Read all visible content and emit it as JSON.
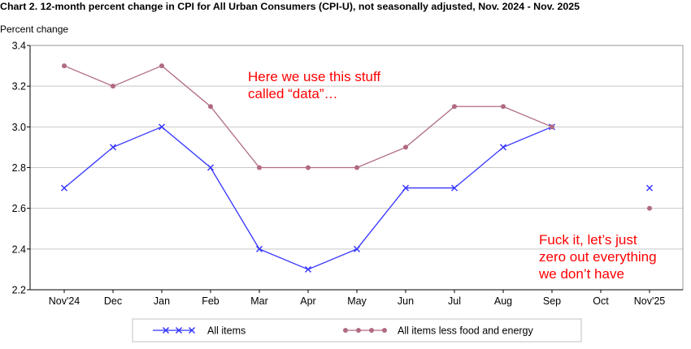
{
  "chart_data": {
    "type": "line",
    "title": "Chart 2. 12-month percent change in CPI for All Urban Consumers (CPI-U), not seasonally adjusted, Nov. 2024 - Nov. 2025",
    "ylabel": "Percent change",
    "xlabel": "",
    "categories": [
      "Nov'24",
      "Dec",
      "Jan",
      "Feb",
      "Mar",
      "Apr",
      "May",
      "Jun",
      "Jul",
      "Aug",
      "Sep",
      "Oct",
      "Nov'25"
    ],
    "ylim": [
      2.2,
      3.4
    ],
    "yticks": [
      "2.2",
      "2.4",
      "2.6",
      "2.8",
      "3.0",
      "3.2",
      "3.4"
    ],
    "grid": true,
    "legend_position": "bottom",
    "series": [
      {
        "name": "All items",
        "color": "#3333ff",
        "marker": "x",
        "values": [
          2.7,
          2.9,
          3.0,
          2.8,
          2.4,
          2.3,
          2.4,
          2.7,
          2.7,
          2.9,
          3.0,
          null,
          2.7
        ]
      },
      {
        "name": "All items less food and energy",
        "color": "#b06a82",
        "marker": "dot",
        "values": [
          3.3,
          3.2,
          3.3,
          3.1,
          2.8,
          2.8,
          2.8,
          2.9,
          3.1,
          3.1,
          3.0,
          null,
          2.6
        ]
      }
    ],
    "annotations": [
      {
        "lines": [
          "Here we use this stuff",
          "called “data”…"
        ],
        "color": "#ff0000"
      },
      {
        "lines": [
          "Fuck it, let’s just",
          "zero out everything",
          "we don’t have"
        ],
        "color": "#ff0000"
      }
    ]
  }
}
